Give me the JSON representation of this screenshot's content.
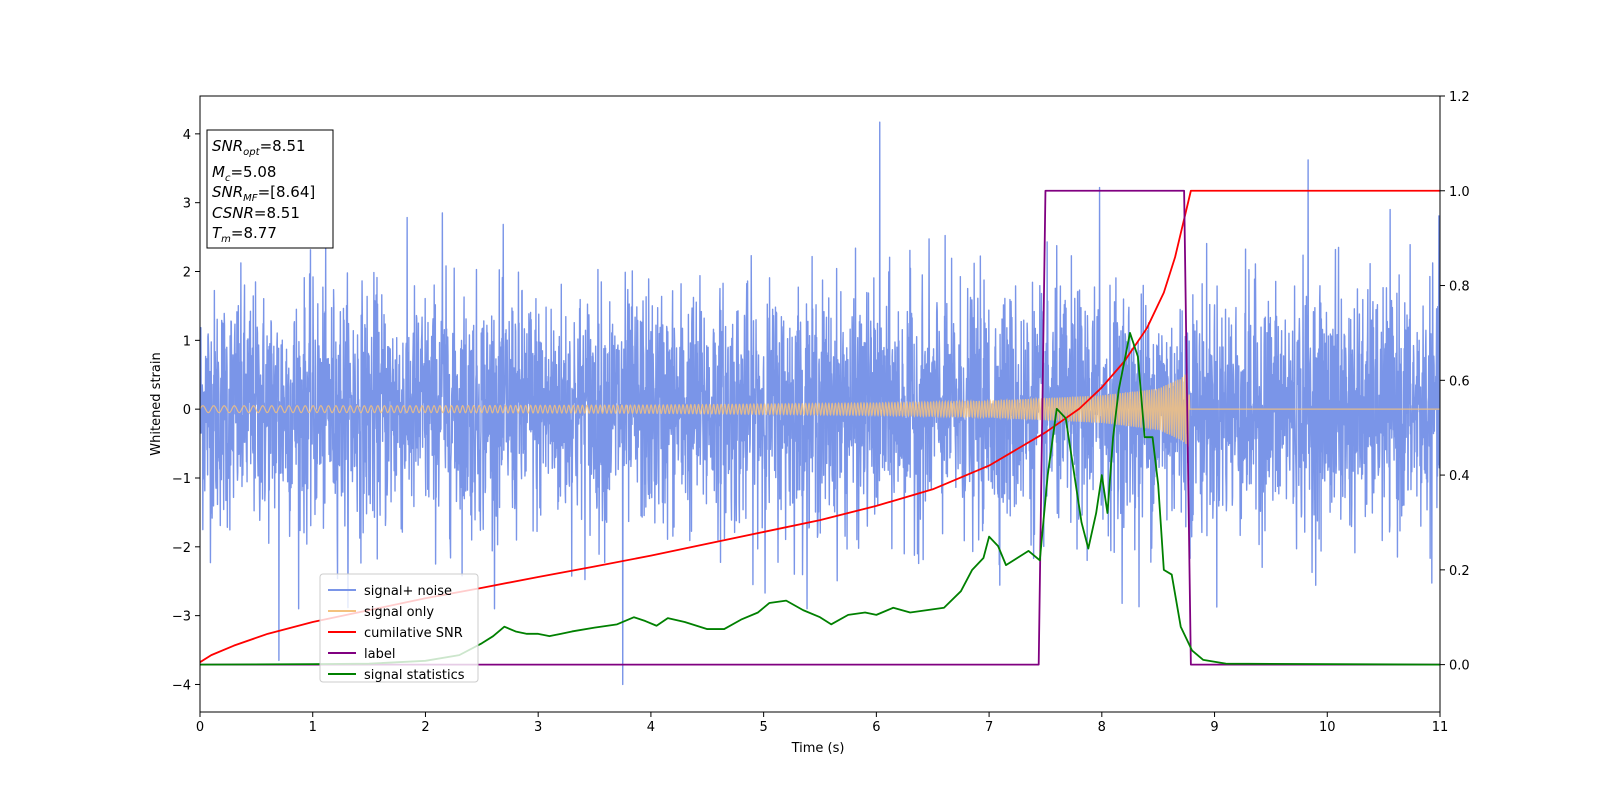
{
  "chart_data": {
    "type": "line",
    "title": "",
    "xlabel": "Time (s)",
    "ylabel": "Whitened strain",
    "xlim": [
      0,
      11
    ],
    "ylim": [
      -4.4,
      4.55
    ],
    "y2lim": [
      -0.1,
      1.2
    ],
    "x_ticks": [
      0,
      1,
      2,
      3,
      4,
      5,
      6,
      7,
      8,
      9,
      10,
      11
    ],
    "y_ticks": [
      -4,
      -3,
      -2,
      -1,
      0,
      1,
      2,
      3,
      4
    ],
    "y2_ticks": [
      "0.0",
      "0.2",
      "0.4",
      "0.6",
      "0.8",
      "1.0",
      "1.2"
    ],
    "grid": false,
    "legend_position": "lower-left",
    "annotation": {
      "lines": [
        {
          "base": "SNR",
          "sub": "opt",
          "value": "=8.51"
        },
        {
          "base": "M",
          "sub": "c",
          "value": "=5.08"
        },
        {
          "base": "SNR",
          "sub": "MF",
          "value": "=[8.64]"
        },
        {
          "base": "CSNR",
          "sub": "",
          "value": "=8.51"
        },
        {
          "base": "T",
          "sub": "m",
          "value": "=8.77"
        }
      ]
    },
    "series": [
      {
        "name": "signal+ noise",
        "color": "#7a95e8",
        "axis": "left",
        "style": "noise",
        "note_sigma": 0.85,
        "x_range": [
          0,
          11
        ],
        "extremes": [
          {
            "x": 0.7,
            "y": -3.65
          },
          {
            "x": 2.15,
            "y": 2.85
          },
          {
            "x": 3.75,
            "y": -4.0
          },
          {
            "x": 6.03,
            "y": 4.17
          },
          {
            "x": 7.98,
            "y": 3.22
          },
          {
            "x": 8.33,
            "y": -2.87
          },
          {
            "x": 9.83,
            "y": 3.62
          },
          {
            "x": 10.1,
            "y": 2.35
          }
        ]
      },
      {
        "name": "signal only",
        "color": "#f4c27e",
        "axis": "left",
        "style": "chirp",
        "amplitude": [
          {
            "x": 0,
            "y": 0.05
          },
          {
            "x": 2,
            "y": 0.05
          },
          {
            "x": 4,
            "y": 0.06
          },
          {
            "x": 6,
            "y": 0.09
          },
          {
            "x": 7,
            "y": 0.12
          },
          {
            "x": 8,
            "y": 0.2
          },
          {
            "x": 8.5,
            "y": 0.3
          },
          {
            "x": 8.7,
            "y": 0.45
          },
          {
            "x": 8.77,
            "y": 0.55
          },
          {
            "x": 8.78,
            "y": 0
          },
          {
            "x": 11,
            "y": 0
          }
        ]
      },
      {
        "name": "cumilative SNR",
        "color": "#ff0000",
        "axis": "right",
        "points": [
          {
            "x": 0,
            "y": 0.005
          },
          {
            "x": 0.1,
            "y": 0.02
          },
          {
            "x": 0.3,
            "y": 0.04
          },
          {
            "x": 0.6,
            "y": 0.065
          },
          {
            "x": 1.0,
            "y": 0.09
          },
          {
            "x": 1.5,
            "y": 0.115
          },
          {
            "x": 2.0,
            "y": 0.14
          },
          {
            "x": 2.5,
            "y": 0.162
          },
          {
            "x": 3.0,
            "y": 0.185
          },
          {
            "x": 3.5,
            "y": 0.207
          },
          {
            "x": 4.0,
            "y": 0.23
          },
          {
            "x": 4.5,
            "y": 0.255
          },
          {
            "x": 5.0,
            "y": 0.28
          },
          {
            "x": 5.5,
            "y": 0.305
          },
          {
            "x": 6.0,
            "y": 0.335
          },
          {
            "x": 6.5,
            "y": 0.37
          },
          {
            "x": 7.0,
            "y": 0.42
          },
          {
            "x": 7.5,
            "y": 0.49
          },
          {
            "x": 7.8,
            "y": 0.54
          },
          {
            "x": 8.0,
            "y": 0.585
          },
          {
            "x": 8.2,
            "y": 0.64
          },
          {
            "x": 8.4,
            "y": 0.71
          },
          {
            "x": 8.55,
            "y": 0.785
          },
          {
            "x": 8.65,
            "y": 0.86
          },
          {
            "x": 8.72,
            "y": 0.93
          },
          {
            "x": 8.77,
            "y": 0.98
          },
          {
            "x": 8.79,
            "y": 1.0
          },
          {
            "x": 11,
            "y": 1.0
          }
        ]
      },
      {
        "name": "label",
        "color": "#800080",
        "axis": "right",
        "points": [
          {
            "x": 0,
            "y": 0
          },
          {
            "x": 7.44,
            "y": 0
          },
          {
            "x": 7.5,
            "y": 1.0
          },
          {
            "x": 8.73,
            "y": 1.0
          },
          {
            "x": 8.79,
            "y": 0
          },
          {
            "x": 11,
            "y": 0
          }
        ]
      },
      {
        "name": "signal statistics",
        "color": "#008000",
        "axis": "right",
        "points": [
          {
            "x": 0,
            "y": 0.0
          },
          {
            "x": 1.0,
            "y": 0.001
          },
          {
            "x": 1.5,
            "y": 0.002
          },
          {
            "x": 2.0,
            "y": 0.008
          },
          {
            "x": 2.3,
            "y": 0.02
          },
          {
            "x": 2.5,
            "y": 0.045
          },
          {
            "x": 2.6,
            "y": 0.06
          },
          {
            "x": 2.7,
            "y": 0.08
          },
          {
            "x": 2.8,
            "y": 0.07
          },
          {
            "x": 2.9,
            "y": 0.065
          },
          {
            "x": 3.0,
            "y": 0.065
          },
          {
            "x": 3.1,
            "y": 0.06
          },
          {
            "x": 3.2,
            "y": 0.065
          },
          {
            "x": 3.3,
            "y": 0.07
          },
          {
            "x": 3.5,
            "y": 0.078
          },
          {
            "x": 3.7,
            "y": 0.085
          },
          {
            "x": 3.85,
            "y": 0.1
          },
          {
            "x": 3.95,
            "y": 0.092
          },
          {
            "x": 4.05,
            "y": 0.082
          },
          {
            "x": 4.15,
            "y": 0.098
          },
          {
            "x": 4.3,
            "y": 0.09
          },
          {
            "x": 4.5,
            "y": 0.075
          },
          {
            "x": 4.65,
            "y": 0.075
          },
          {
            "x": 4.8,
            "y": 0.095
          },
          {
            "x": 4.95,
            "y": 0.11
          },
          {
            "x": 5.05,
            "y": 0.13
          },
          {
            "x": 5.2,
            "y": 0.135
          },
          {
            "x": 5.35,
            "y": 0.115
          },
          {
            "x": 5.5,
            "y": 0.1
          },
          {
            "x": 5.6,
            "y": 0.085
          },
          {
            "x": 5.75,
            "y": 0.105
          },
          {
            "x": 5.9,
            "y": 0.11
          },
          {
            "x": 6.0,
            "y": 0.105
          },
          {
            "x": 6.15,
            "y": 0.12
          },
          {
            "x": 6.3,
            "y": 0.11
          },
          {
            "x": 6.45,
            "y": 0.115
          },
          {
            "x": 6.6,
            "y": 0.12
          },
          {
            "x": 6.75,
            "y": 0.155
          },
          {
            "x": 6.85,
            "y": 0.2
          },
          {
            "x": 6.95,
            "y": 0.225
          },
          {
            "x": 7.0,
            "y": 0.27
          },
          {
            "x": 7.08,
            "y": 0.25
          },
          {
            "x": 7.15,
            "y": 0.21
          },
          {
            "x": 7.25,
            "y": 0.225
          },
          {
            "x": 7.35,
            "y": 0.24
          },
          {
            "x": 7.45,
            "y": 0.22
          },
          {
            "x": 7.52,
            "y": 0.4
          },
          {
            "x": 7.6,
            "y": 0.54
          },
          {
            "x": 7.68,
            "y": 0.52
          },
          {
            "x": 7.75,
            "y": 0.41
          },
          {
            "x": 7.82,
            "y": 0.3
          },
          {
            "x": 7.88,
            "y": 0.245
          },
          {
            "x": 7.95,
            "y": 0.32
          },
          {
            "x": 8.0,
            "y": 0.4
          },
          {
            "x": 8.05,
            "y": 0.32
          },
          {
            "x": 8.1,
            "y": 0.48
          },
          {
            "x": 8.15,
            "y": 0.58
          },
          {
            "x": 8.25,
            "y": 0.7
          },
          {
            "x": 8.32,
            "y": 0.65
          },
          {
            "x": 8.38,
            "y": 0.48
          },
          {
            "x": 8.45,
            "y": 0.48
          },
          {
            "x": 8.5,
            "y": 0.38
          },
          {
            "x": 8.55,
            "y": 0.2
          },
          {
            "x": 8.62,
            "y": 0.19
          },
          {
            "x": 8.7,
            "y": 0.08
          },
          {
            "x": 8.8,
            "y": 0.03
          },
          {
            "x": 8.9,
            "y": 0.01
          },
          {
            "x": 9.1,
            "y": 0.002
          },
          {
            "x": 11,
            "y": 0.0
          }
        ]
      }
    ]
  }
}
